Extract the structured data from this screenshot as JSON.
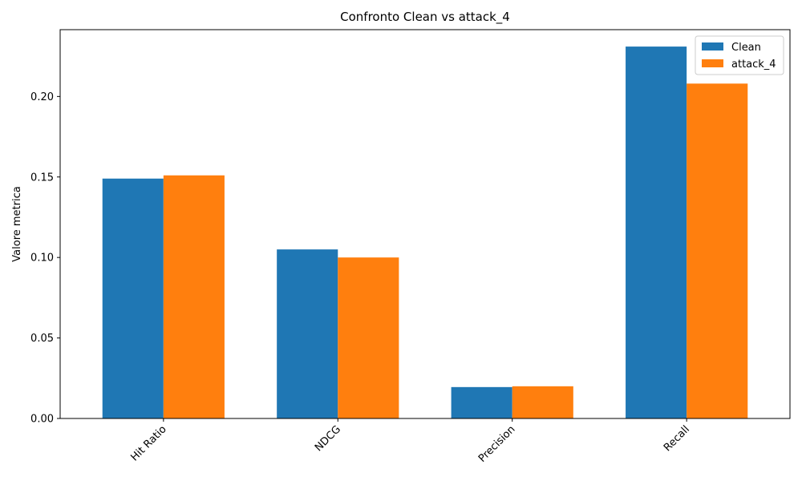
{
  "chart_data": {
    "type": "bar",
    "title": "Confronto Clean vs attack_4",
    "xlabel": "",
    "ylabel": "Valore metrica",
    "categories": [
      "Hit Ratio",
      "NDCG",
      "Precision",
      "Recall"
    ],
    "series": [
      {
        "name": "Clean",
        "color": "#1f77b4",
        "values": [
          0.149,
          0.105,
          0.0195,
          0.231
        ]
      },
      {
        "name": "attack_4",
        "color": "#ff7f0e",
        "values": [
          0.151,
          0.1,
          0.02,
          0.208
        ]
      }
    ],
    "ylim": [
      0,
      0.2415
    ],
    "yticks": [
      0.0,
      0.05,
      0.1,
      0.15,
      0.2
    ],
    "ytick_labels": [
      "0.00",
      "0.05",
      "0.10",
      "0.15",
      "0.20"
    ],
    "xtick_rotation": 45,
    "grid": false,
    "legend_position": "top-right"
  }
}
